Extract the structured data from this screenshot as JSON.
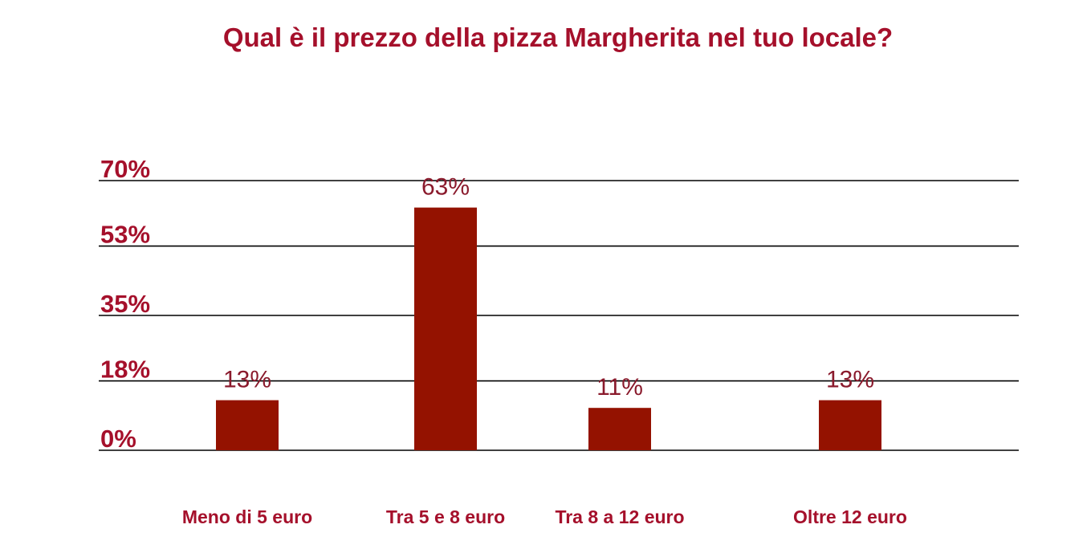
{
  "chart_data": {
    "type": "bar",
    "title": "Qual è il prezzo della pizza Margherita nel tuo locale?",
    "xlabel": "",
    "ylabel": "",
    "categories": [
      "Meno di 5 euro",
      "Tra 5 e 8 euro",
      "Tra 8 a 12 euro",
      "Oltre 12 euro"
    ],
    "values": [
      13,
      63,
      11,
      13
    ],
    "value_labels": [
      "13%",
      "63%",
      "11%",
      "13%"
    ],
    "y_ticks": [
      0,
      18,
      35,
      53,
      70
    ],
    "y_tick_labels": [
      "0%",
      "18%",
      "35%",
      "53%",
      "70%"
    ],
    "ylim": [
      0,
      70
    ],
    "grid": true,
    "legend": "none"
  },
  "colors": {
    "bar": "#941200",
    "text": "#A5102B",
    "value_text": "#8A1A2C",
    "grid": "#000000"
  }
}
